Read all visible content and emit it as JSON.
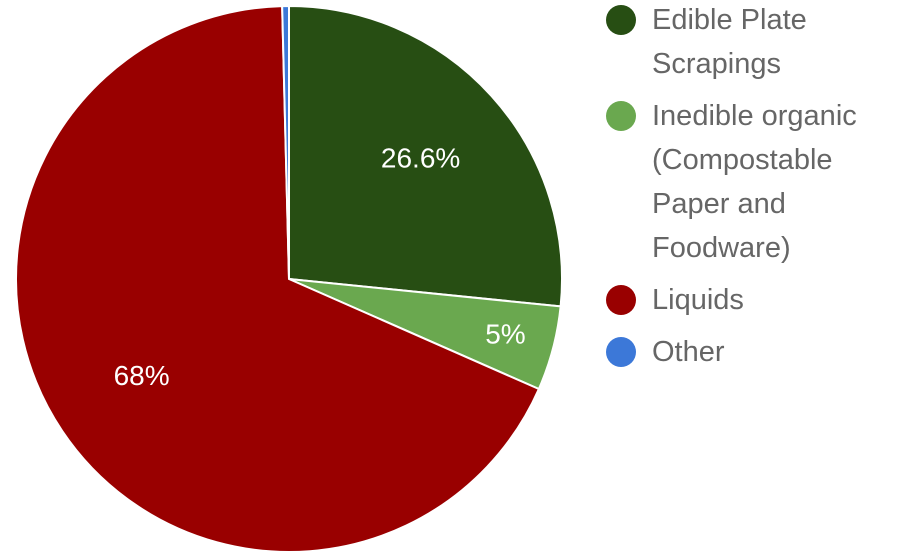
{
  "chart_data": {
    "type": "pie",
    "title": "",
    "legend_position": "right",
    "slices": [
      {
        "name": "Edible Plate Scrapings",
        "value": 26.6,
        "label": "26.6%",
        "color": "#274e13"
      },
      {
        "name": "Inedible organic (Compostable Paper and Foodware)",
        "value": 5,
        "label": "5%",
        "color": "#6aa84f"
      },
      {
        "name": "Liquids",
        "value": 68,
        "label": "68%",
        "color": "#990000"
      },
      {
        "name": "Other",
        "value": 0.4,
        "label": "",
        "color": "#3c78d8"
      }
    ]
  },
  "legend": {
    "items": [
      {
        "label": "Edible Plate Scrapings",
        "color": "#274e13"
      },
      {
        "label": "Inedible organic (Compostable Paper and Foodware)",
        "color": "#6aa84f"
      },
      {
        "label": "Liquids",
        "color": "#990000"
      },
      {
        "label": "Other",
        "color": "#3c78d8"
      }
    ]
  }
}
